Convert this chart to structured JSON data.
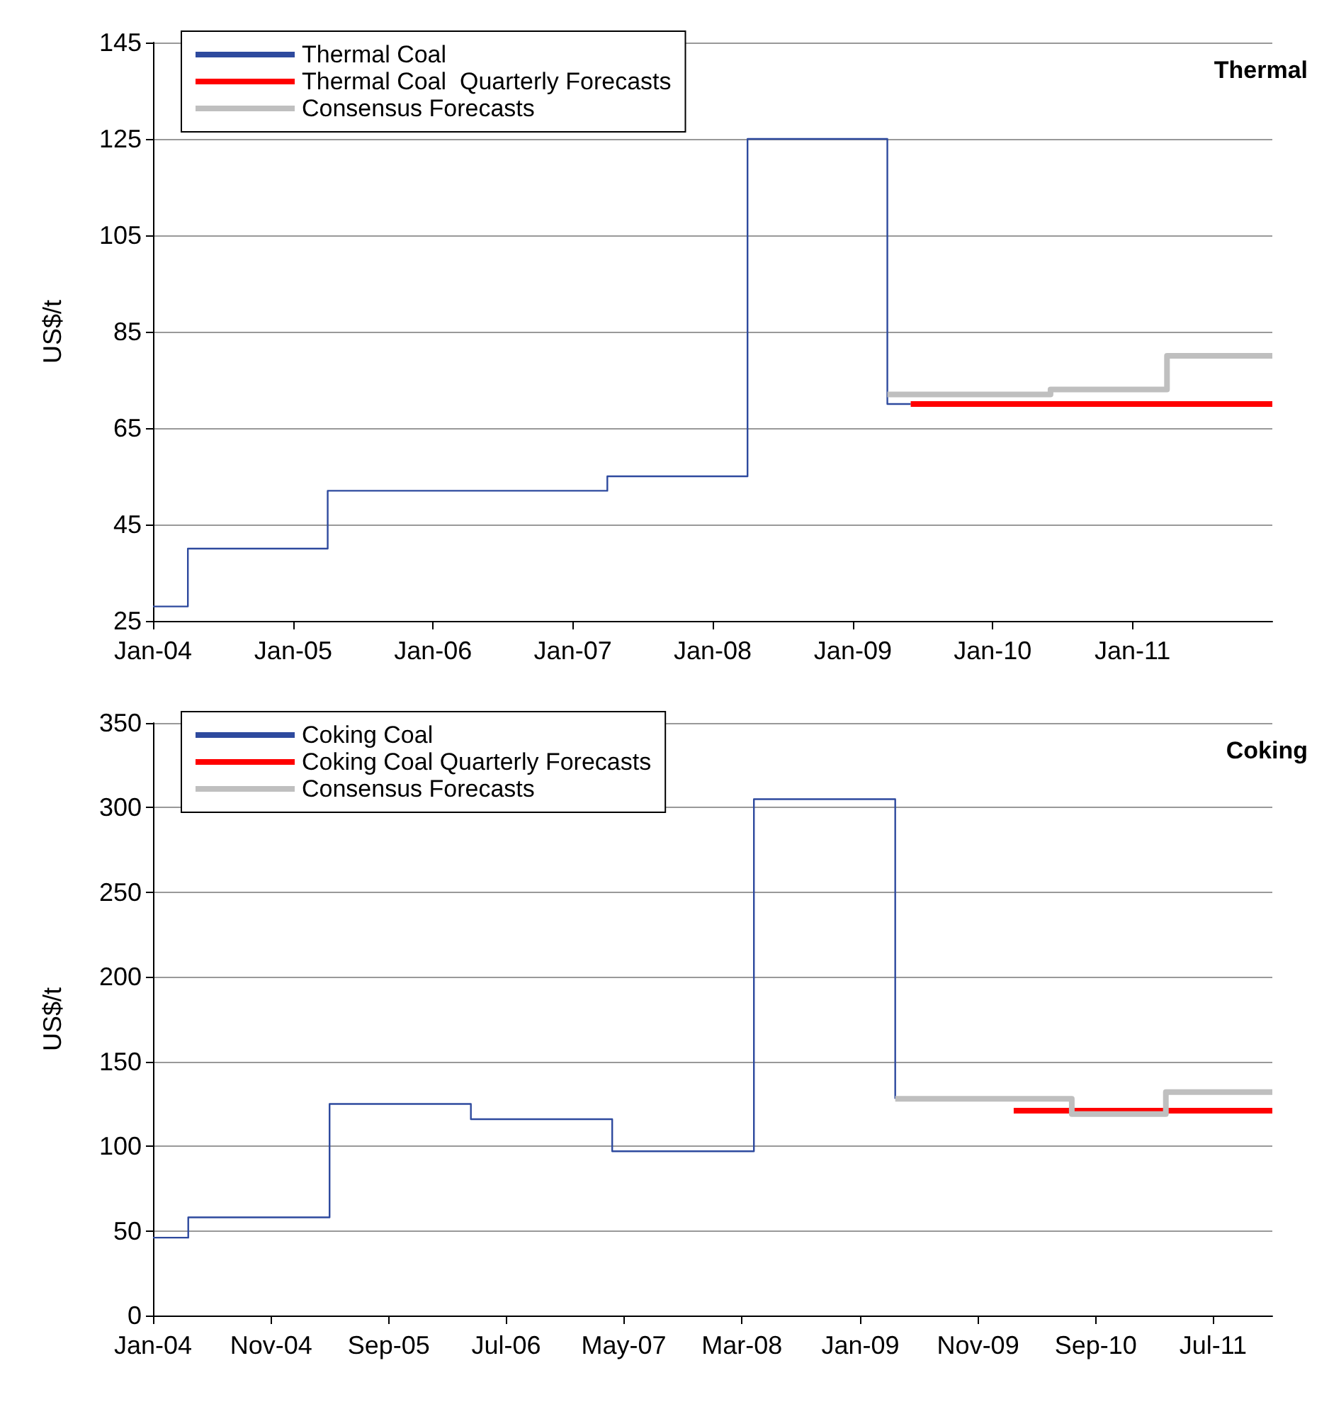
{
  "chart_data": [
    {
      "type": "step",
      "title": "Thermal",
      "ylabel": "US$/t",
      "xlim": [
        "2004-01",
        "2012-01"
      ],
      "xticks": [
        {
          "value": "2004-01",
          "label": "Jan-04"
        },
        {
          "value": "2005-01",
          "label": "Jan-05"
        },
        {
          "value": "2006-01",
          "label": "Jan-06"
        },
        {
          "value": "2007-01",
          "label": "Jan-07"
        },
        {
          "value": "2008-01",
          "label": "Jan-08"
        },
        {
          "value": "2009-01",
          "label": "Jan-09"
        },
        {
          "value": "2010-01",
          "label": "Jan-10"
        },
        {
          "value": "2011-01",
          "label": "Jan-11"
        }
      ],
      "ylim": [
        25,
        145
      ],
      "yticks": [
        25,
        45,
        65,
        85,
        105,
        125,
        145
      ],
      "grid": "y",
      "legend": "top left",
      "line_style": "solid",
      "series": [
        {
          "name": "Thermal Coal",
          "color": "#2e4a9e",
          "x": [
            "2004-01",
            "2004-04",
            "2005-04",
            "2007-04",
            "2008-04",
            "2009-04",
            "2009-06"
          ],
          "values": [
            28,
            40,
            52,
            55,
            125,
            70,
            70
          ]
        },
        {
          "name": "Thermal Coal  Quarterly Forecasts",
          "color": "#ff0000",
          "x": [
            "2009-06",
            "2012-01"
          ],
          "values": [
            70,
            70
          ]
        },
        {
          "name": "Consensus Forecasts",
          "color": "#bfbfbf",
          "x": [
            "2009-04",
            "2010-06",
            "2011-04",
            "2012-01"
          ],
          "values": [
            72,
            73,
            80,
            80
          ]
        }
      ]
    },
    {
      "type": "step",
      "title": "Coking",
      "ylabel": "US$/t",
      "xlim": [
        "2004-01",
        "2011-12"
      ],
      "xticks": [
        {
          "value": "2004-01",
          "label": "Jan-04"
        },
        {
          "value": "2004-11",
          "label": "Nov-04"
        },
        {
          "value": "2005-09",
          "label": "Sep-05"
        },
        {
          "value": "2006-07",
          "label": "Jul-06"
        },
        {
          "value": "2007-05",
          "label": "May-07"
        },
        {
          "value": "2008-03",
          "label": "Mar-08"
        },
        {
          "value": "2009-01",
          "label": "Jan-09"
        },
        {
          "value": "2009-11",
          "label": "Nov-09"
        },
        {
          "value": "2010-09",
          "label": "Sep-10"
        },
        {
          "value": "2011-07",
          "label": "Jul-11"
        }
      ],
      "ylim": [
        0,
        350
      ],
      "yticks": [
        0,
        50,
        100,
        150,
        200,
        250,
        300,
        350
      ],
      "grid": "y",
      "legend": "top left",
      "line_style": "solid",
      "series": [
        {
          "name": "Coking Coal",
          "color": "#2e4a9e",
          "x": [
            "2004-01",
            "2004-04",
            "2005-04",
            "2006-04",
            "2007-04",
            "2008-04",
            "2009-04"
          ],
          "values": [
            46,
            58,
            125,
            116,
            97,
            305,
            128
          ]
        },
        {
          "name": "Coking Coal Quarterly Forecasts",
          "color": "#ff0000",
          "x": [
            "2010-02",
            "2011-12"
          ],
          "values": [
            121,
            121
          ]
        },
        {
          "name": "Consensus Forecasts",
          "color": "#bfbfbf",
          "x": [
            "2009-04",
            "2010-07",
            "2011-03",
            "2011-12"
          ],
          "values": [
            128,
            119,
            132,
            132
          ]
        }
      ]
    }
  ]
}
